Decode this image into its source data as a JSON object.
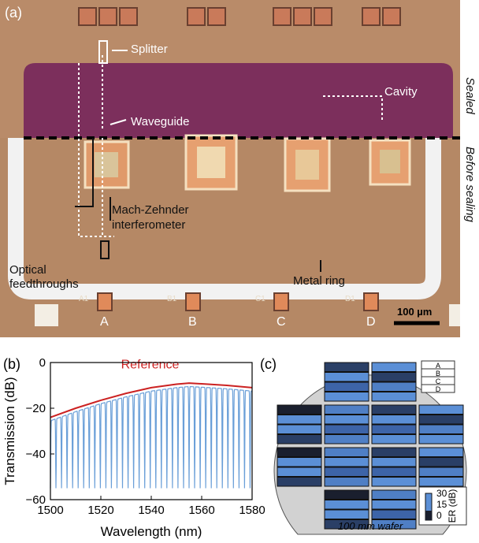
{
  "panel_a": {
    "label": "(a)",
    "splitter": "Splitter",
    "cavity": "Cavity",
    "waveguide": "Waveguide",
    "mzi_line1": "Mach-Zehnder",
    "mzi_line2": "interferometer",
    "optical_line1": "Optical",
    "optical_line2": "feedthroughs",
    "metal_ring": "Metal ring",
    "scale_bar": "100 µm",
    "pads": [
      "A",
      "B",
      "C",
      "D"
    ],
    "pad_small": [
      "A1",
      "B1",
      "C1",
      "D1"
    ],
    "side_sealed": "Sealed",
    "side_before": "Before sealing"
  },
  "panel_b": {
    "label": "(b)",
    "reference_label": "Reference",
    "reference_color": "#cc2222",
    "transmission_color": "#6a9fd8",
    "chart_data": {
      "type": "line",
      "xlabel": "Wavelength (nm)",
      "ylabel": "Transmission (dB)",
      "xlim": [
        1500,
        1580
      ],
      "ylim": [
        -60,
        0
      ],
      "xticks": [
        "1500",
        "1520",
        "1540",
        "1560",
        "1580"
      ],
      "yticks": [
        "0",
        "-20",
        "-40",
        "-60"
      ],
      "series": [
        {
          "name": "Reference",
          "x": [
            1500,
            1510,
            1520,
            1530,
            1540,
            1550,
            1555,
            1560,
            1570,
            1580
          ],
          "y": [
            -24,
            -20,
            -16.5,
            -13.5,
            -11,
            -9.5,
            -9,
            -9.3,
            -10,
            -11
          ]
        }
      ]
    }
  },
  "panel_c": {
    "label": "(c)",
    "legend_letters": [
      "A",
      "B",
      "C",
      "D"
    ],
    "colorbar_ticks": [
      "30",
      "15",
      "0"
    ],
    "colorbar_label": "ER (dB)",
    "wafer_label": "100 mm wafer"
  }
}
